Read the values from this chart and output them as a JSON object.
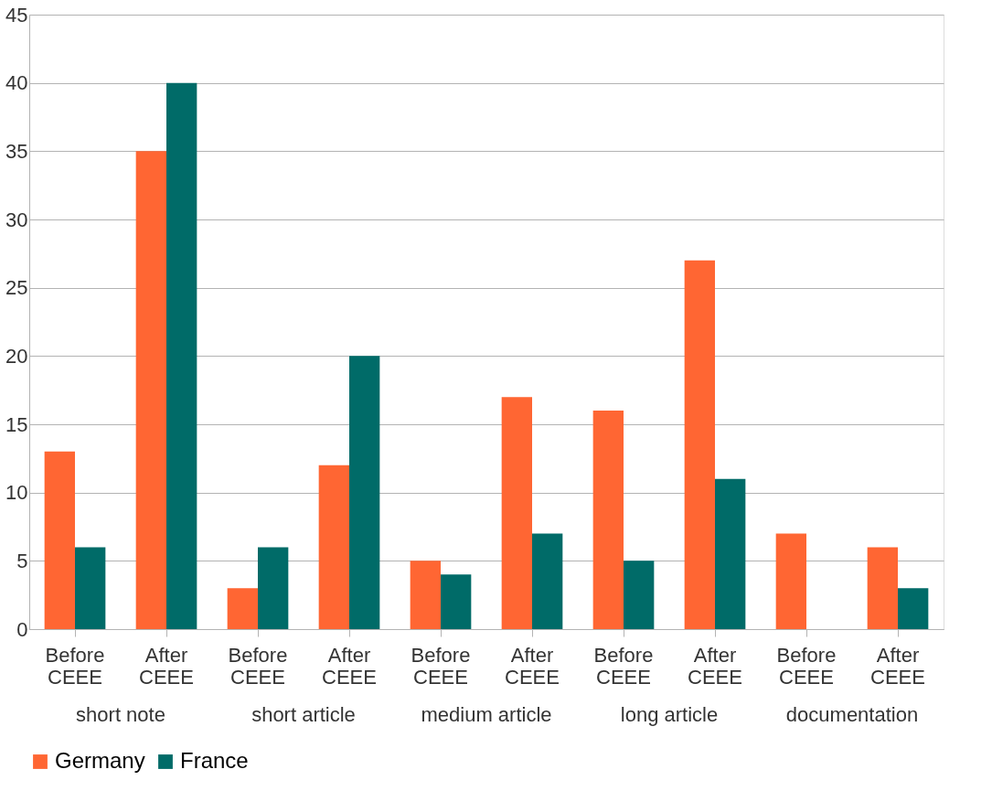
{
  "chart_data": {
    "type": "bar",
    "categories": [
      "Before CEEE",
      "After CEEE",
      "Before CEEE",
      "After CEEE",
      "Before CEEE",
      "After CEEE",
      "Before CEEE",
      "After CEEE",
      "Before CEEE",
      "After CEEE"
    ],
    "series": [
      {
        "name": "Germany",
        "color": "#ff6633",
        "values": [
          13,
          35,
          3,
          12,
          5,
          17,
          16,
          27,
          7,
          6
        ]
      },
      {
        "name": "France",
        "color": "#006b68",
        "values": [
          6,
          40,
          6,
          20,
          4,
          7,
          5,
          11,
          0,
          3
        ]
      }
    ],
    "annotations": [
      "short note",
      "short article",
      "medium article",
      "long article",
      "documentation"
    ],
    "ylim": [
      0,
      45
    ],
    "yticks": [
      0,
      5,
      10,
      15,
      20,
      25,
      30,
      35,
      40,
      45
    ],
    "grid": "y",
    "legend": "bottom"
  }
}
